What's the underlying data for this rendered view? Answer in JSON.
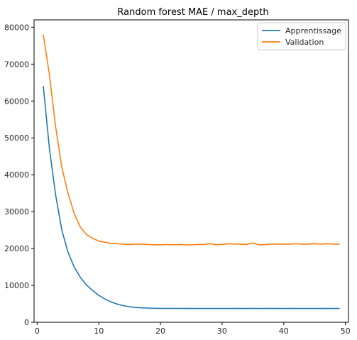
{
  "chart_data": {
    "type": "line",
    "title": "Random forest MAE / max_depth",
    "xlabel": "",
    "ylabel": "",
    "xlim": [
      -0.5,
      50.5
    ],
    "ylim": [
      0,
      82000
    ],
    "x_ticks": [
      0,
      10,
      20,
      30,
      40,
      50
    ],
    "y_ticks": [
      0,
      10000,
      20000,
      30000,
      40000,
      50000,
      60000,
      70000,
      80000
    ],
    "grid": false,
    "legend_position": "top-right",
    "x": [
      1,
      2,
      3,
      4,
      5,
      6,
      7,
      8,
      9,
      10,
      11,
      12,
      13,
      14,
      15,
      16,
      17,
      18,
      19,
      20,
      21,
      22,
      23,
      24,
      25,
      26,
      27,
      28,
      29,
      30,
      31,
      32,
      33,
      34,
      35,
      36,
      37,
      38,
      39,
      40,
      41,
      42,
      43,
      44,
      45,
      46,
      47,
      48,
      49
    ],
    "series": [
      {
        "name": "Apprentissage",
        "color": "#1f77b4",
        "values": [
          64000,
          47000,
          34500,
          25000,
          19000,
          15000,
          12200,
          10100,
          8600,
          7300,
          6300,
          5500,
          4900,
          4500,
          4200,
          4000,
          3900,
          3850,
          3800,
          3780,
          3760,
          3750,
          3750,
          3740,
          3740,
          3740,
          3730,
          3730,
          3730,
          3730,
          3730,
          3730,
          3730,
          3730,
          3730,
          3730,
          3730,
          3730,
          3730,
          3730,
          3730,
          3730,
          3730,
          3730,
          3730,
          3730,
          3730,
          3730,
          3730
        ]
      },
      {
        "name": "Validation",
        "color": "#ff7f0e",
        "values": [
          78000,
          67000,
          53000,
          42000,
          35000,
          29500,
          25800,
          23800,
          22800,
          22000,
          21700,
          21400,
          21300,
          21200,
          21100,
          21200,
          21200,
          21100,
          21000,
          21000,
          21100,
          21000,
          21100,
          21000,
          21000,
          21100,
          21100,
          21300,
          21000,
          21100,
          21300,
          21200,
          21200,
          21100,
          21500,
          21000,
          21100,
          21200,
          21200,
          21200,
          21200,
          21300,
          21200,
          21200,
          21300,
          21200,
          21300,
          21200,
          21200
        ]
      }
    ]
  }
}
